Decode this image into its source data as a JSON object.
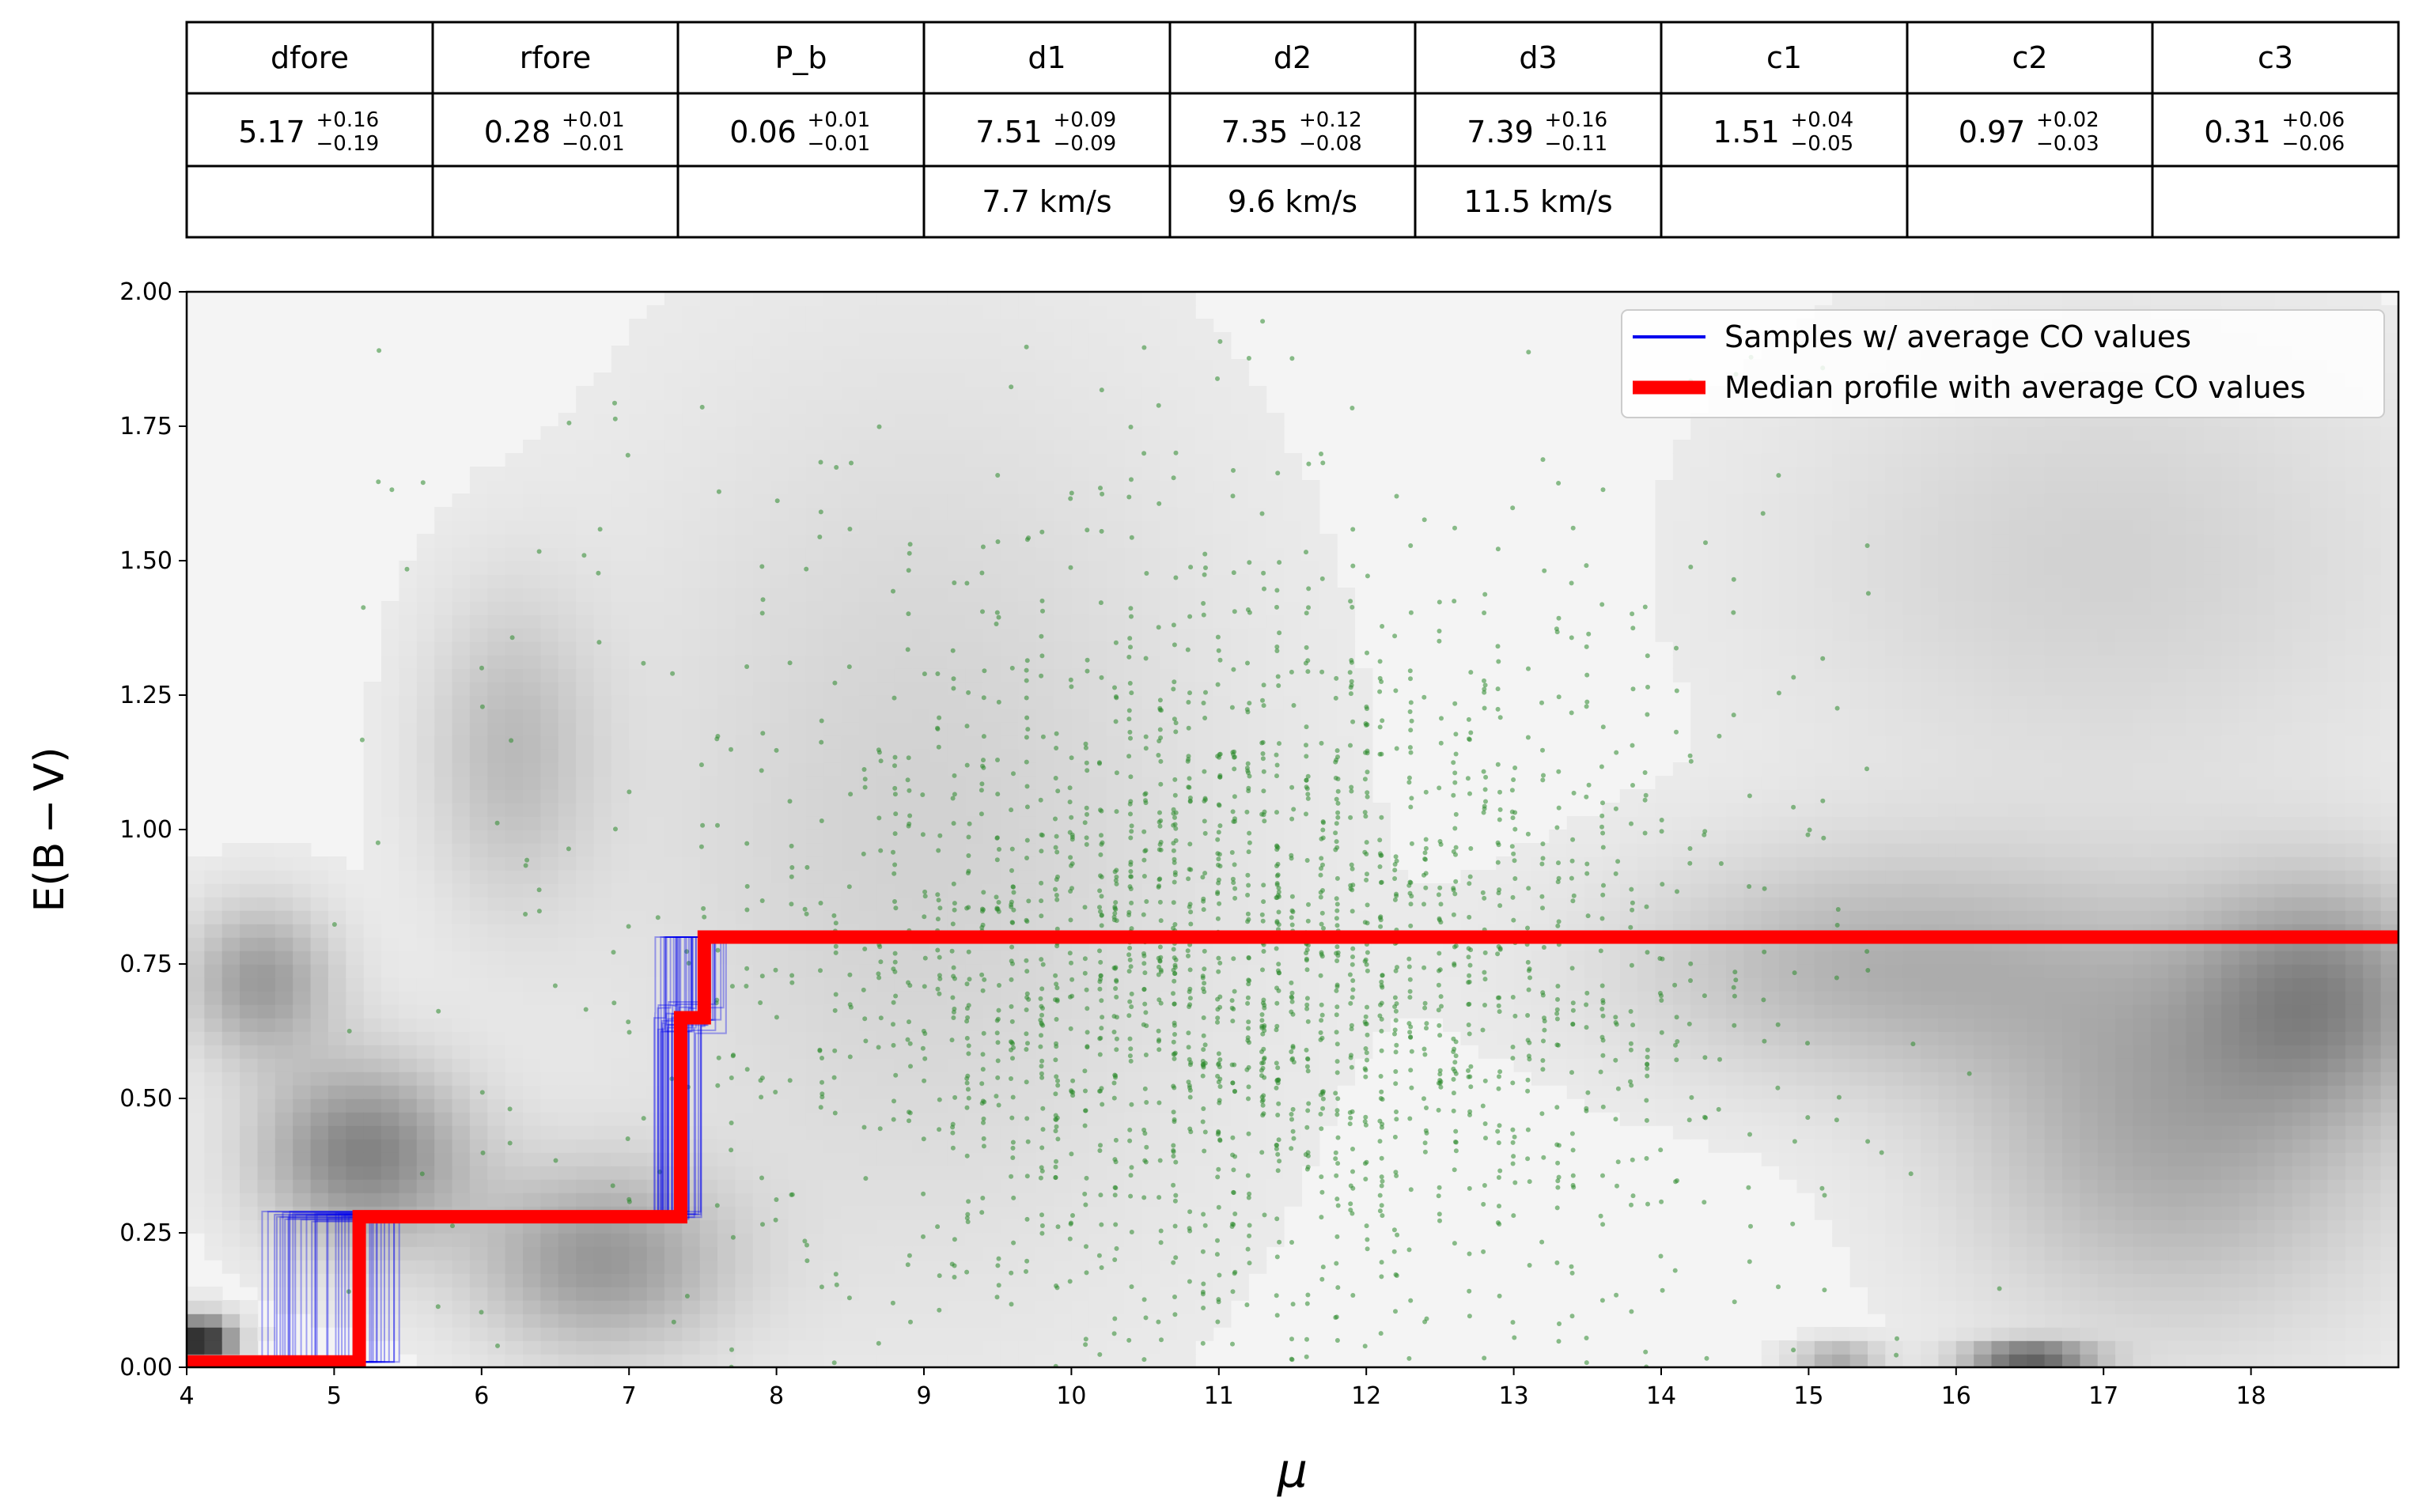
{
  "table": {
    "headers": [
      "dfore",
      "rfore",
      "P_b",
      "d1",
      "d2",
      "d3",
      "c1",
      "c2",
      "c3"
    ],
    "values": [
      {
        "value": "5.17",
        "plus": "+0.16",
        "minus": "−0.19"
      },
      {
        "value": "0.28",
        "plus": "+0.01",
        "minus": "−0.01"
      },
      {
        "value": "0.06",
        "plus": "+0.01",
        "minus": "−0.01"
      },
      {
        "value": "7.51",
        "plus": "+0.09",
        "minus": "−0.09"
      },
      {
        "value": "7.35",
        "plus": "+0.12",
        "minus": "−0.08"
      },
      {
        "value": "7.39",
        "plus": "+0.16",
        "minus": "−0.11"
      },
      {
        "value": "1.51",
        "plus": "+0.04",
        "minus": "−0.05"
      },
      {
        "value": "0.97",
        "plus": "+0.02",
        "minus": "−0.03"
      },
      {
        "value": "0.31",
        "plus": "+0.06",
        "minus": "−0.06"
      }
    ],
    "velocities": [
      "",
      "",
      "",
      "7.7 km/s",
      "9.6 km/s",
      "11.5 km/s",
      "",
      "",
      ""
    ]
  },
  "chart_data": {
    "type": "line",
    "xlabel": "μ",
    "ylabel": "E(B − V)",
    "xlim": [
      4,
      19
    ],
    "ylim": [
      0,
      2
    ],
    "xticks": [
      "4",
      "5",
      "6",
      "7",
      "8",
      "9",
      "10",
      "11",
      "12",
      "13",
      "14",
      "15",
      "16",
      "17",
      "18"
    ],
    "yticks": [
      "0.00",
      "0.25",
      "0.50",
      "0.75",
      "1.00",
      "1.25",
      "1.50",
      "1.75",
      "2.00"
    ],
    "legend": {
      "position": "top-right",
      "entries": [
        {
          "label": "Samples  w/ average CO values",
          "color": "#0000ee"
        },
        {
          "label": "Median profile with average CO values",
          "color": "#ff0000"
        }
      ]
    },
    "colors": {
      "samples": "#0000ee",
      "median": "#ff0000",
      "stars": "#2e8b2e",
      "background": "grayscale"
    },
    "median_profile": {
      "x": [
        4.0,
        5.17,
        5.17,
        7.35,
        7.35,
        7.51,
        7.51,
        19.0
      ],
      "y": [
        0.01,
        0.01,
        0.28,
        0.28,
        0.65,
        0.65,
        0.8,
        0.8
      ]
    },
    "samples": {
      "count": 40,
      "foreground_step_x_range": [
        4.5,
        5.45
      ],
      "cloud_step_x_range": [
        7.15,
        7.7
      ],
      "levels_y": [
        0.01,
        0.28,
        0.65,
        0.8
      ]
    },
    "stars": {
      "count": 2400,
      "x_center": 11.2,
      "x_spread": 1.6,
      "y_center": 0.75,
      "y_spread": 0.35,
      "x_range": [
        5,
        16.5
      ],
      "y_range": [
        0,
        2.0
      ],
      "color": "#2e8b2e"
    },
    "density_background": {
      "features": [
        {
          "x": 4.1,
          "y": 0.05,
          "amp": 0.9,
          "sx": 0.15,
          "sy": 0.03
        },
        {
          "x": 5.2,
          "y": 0.4,
          "amp": 0.45,
          "sx": 0.5,
          "sy": 0.12
        },
        {
          "x": 4.5,
          "y": 0.72,
          "amp": 0.35,
          "sx": 0.35,
          "sy": 0.1
        },
        {
          "x": 6.2,
          "y": 1.15,
          "amp": 0.2,
          "sx": 0.4,
          "sy": 0.2
        },
        {
          "x": 6.8,
          "y": 0.2,
          "amp": 0.35,
          "sx": 0.6,
          "sy": 0.12
        },
        {
          "x": 9.0,
          "y": 1.0,
          "amp": 0.12,
          "sx": 1.5,
          "sy": 0.6
        },
        {
          "x": 15.5,
          "y": 0.75,
          "amp": 0.25,
          "sx": 1.2,
          "sy": 0.15
        },
        {
          "x": 17.5,
          "y": 0.45,
          "amp": 0.3,
          "sx": 1.0,
          "sy": 0.25
        },
        {
          "x": 18.5,
          "y": 0.7,
          "amp": 0.35,
          "sx": 0.6,
          "sy": 0.15
        },
        {
          "x": 16.5,
          "y": 0.02,
          "amp": 0.6,
          "sx": 0.3,
          "sy": 0.02
        },
        {
          "x": 15.2,
          "y": 0.02,
          "amp": 0.3,
          "sx": 0.2,
          "sy": 0.02
        },
        {
          "x": 17.0,
          "y": 1.5,
          "amp": 0.12,
          "sx": 1.5,
          "sy": 0.3
        }
      ]
    }
  }
}
